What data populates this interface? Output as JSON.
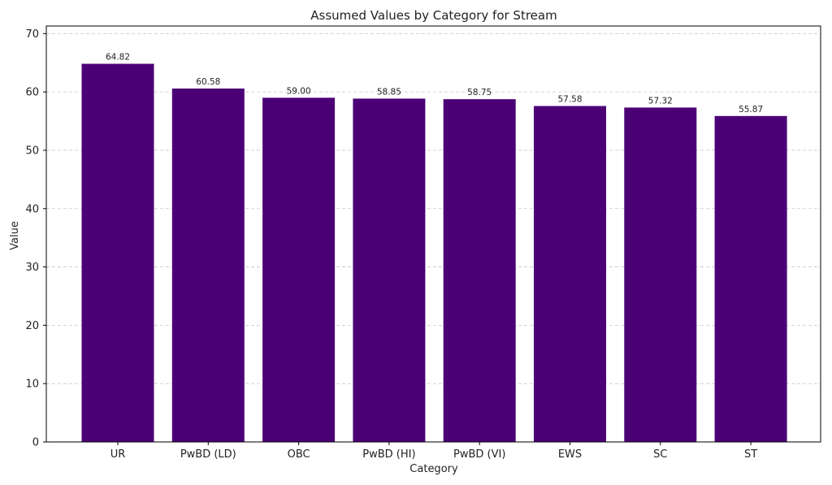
{
  "chart_data": {
    "type": "bar",
    "title": "Assumed Values by Category for Stream",
    "xlabel": "Category",
    "ylabel": "Value",
    "categories": [
      "UR",
      "PwBD (LD)",
      "OBC",
      "PwBD (HI)",
      "PwBD (VI)",
      "EWS",
      "SC",
      "ST"
    ],
    "values": [
      64.82,
      60.58,
      59.0,
      58.85,
      58.75,
      57.58,
      57.32,
      55.87
    ],
    "value_labels": [
      "64.82",
      "60.58",
      "59.00",
      "58.85",
      "58.75",
      "57.58",
      "57.32",
      "55.87"
    ],
    "ylim": [
      0,
      71.3
    ],
    "yticks": [
      0,
      10,
      20,
      30,
      40,
      50,
      60,
      70
    ],
    "grid": true,
    "grid_axis": "y",
    "legend": false,
    "bar_color": "#4b0076"
  }
}
